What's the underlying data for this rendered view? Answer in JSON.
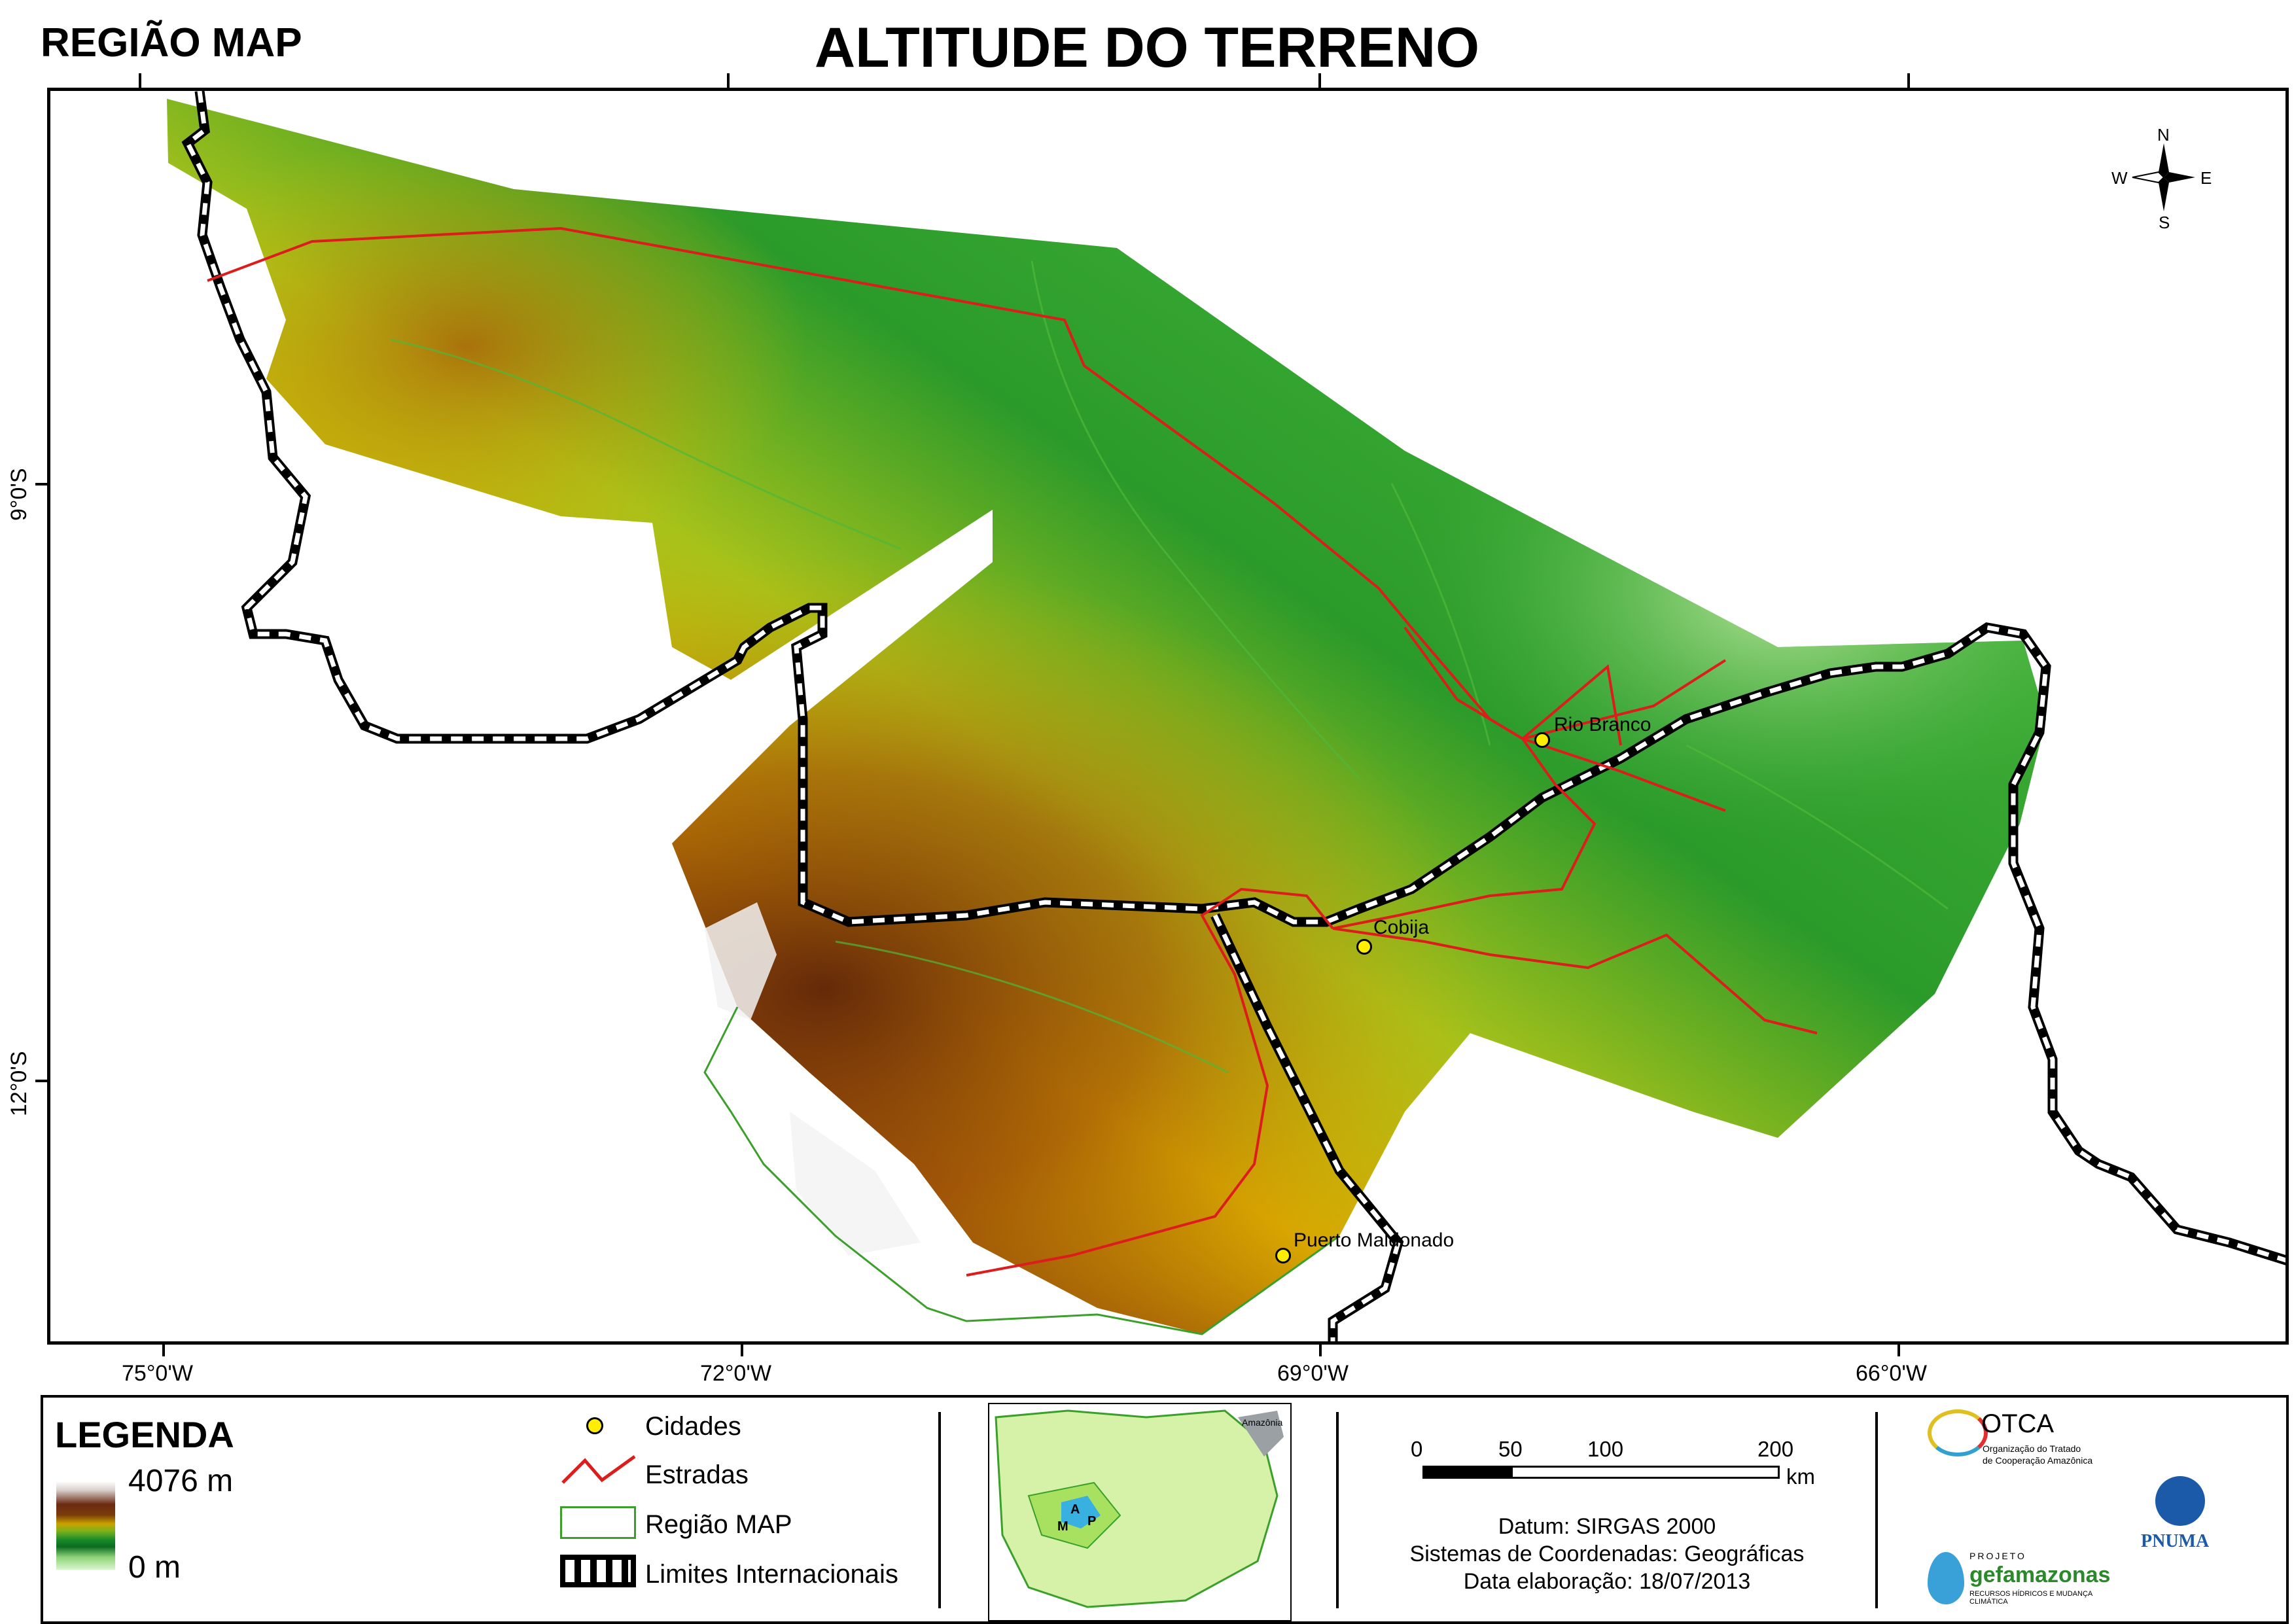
{
  "header": {
    "region_label": "REGIÃO MAP",
    "title": "ALTITUDE DO TERRENO"
  },
  "map": {
    "longitude_labels": [
      "75°0'W",
      "72°0'W",
      "69°0'W",
      "66°0'W"
    ],
    "latitude_labels": [
      "9°0'S",
      "12°0'S"
    ],
    "cities": [
      {
        "name": "Rio Branco"
      },
      {
        "name": "Cobija"
      },
      {
        "name": "Puerto Maldonado"
      }
    ],
    "north_arrow": {
      "n": "N",
      "s": "S",
      "e": "E",
      "w": "W"
    },
    "colors": {
      "road": "#dd1c1c",
      "city": "#ffee00",
      "region_outline": "#3aa02a",
      "low": "#d8f6cc",
      "mid": "#1a8a2a",
      "high_mid": "#c9a200",
      "high": "#6b2a12"
    }
  },
  "legend": {
    "title": "LEGENDA",
    "ramp_high": "4076 m",
    "ramp_low": "0 m",
    "items": [
      {
        "label": "Cidades",
        "icon": "city-point-icon"
      },
      {
        "label": "Estradas",
        "icon": "road-line-icon"
      },
      {
        "label": "Região MAP",
        "icon": "region-box-icon"
      },
      {
        "label": "Limites Internacionais",
        "icon": "border-line-icon"
      }
    ],
    "inset": {
      "label": "Amazônia",
      "letters": [
        "A",
        "M",
        "P"
      ]
    },
    "scale": {
      "ticks": [
        "0",
        "50",
        "100",
        "200"
      ],
      "unit": "km"
    },
    "datum": "Datum: SIRGAS 2000",
    "crs": "Sistemas de Coordenadas: Geográficas",
    "date": "Data elaboração: 18/07/2013",
    "logos": {
      "otca_name": "OTCA",
      "otca_sub1": "Organização do Tratado",
      "otca_sub2": "de Cooperação Amazônica",
      "pnuma": "PNUMA",
      "gef_top": "PROJETO",
      "gef_name": "gefamazonas",
      "gef_sub": "RECURSOS HÍDRICOS E MUDANÇA CLIMÁTICA"
    }
  }
}
